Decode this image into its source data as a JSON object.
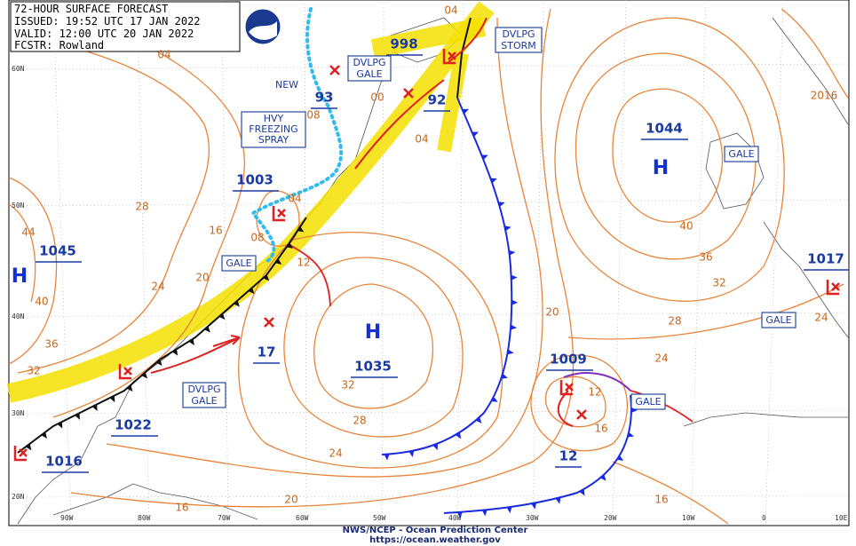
{
  "header": {
    "lines": [
      "72-HOUR SURFACE FORECAST",
      "ISSUED: 19:52 UTC 17 JAN 2022",
      "VALID: 12:00 UTC 20 JAN 2022",
      "FCSTR: Rowland"
    ]
  },
  "grid_labels": {
    "latitudes": [
      "60N",
      "50N",
      "40N",
      "30N",
      "20N"
    ],
    "longitudes": [
      "90W",
      "80W",
      "70W",
      "60W",
      "50W",
      "40W",
      "30W",
      "20W",
      "10W",
      "0",
      "10E"
    ]
  },
  "highs": [
    "H",
    "H",
    "H"
  ],
  "pressure_labels": [
    "1045",
    "1003",
    "1022",
    "1016",
    "1035",
    "1009",
    "1044",
    "1017",
    "998",
    "93",
    "92",
    "17",
    "12"
  ],
  "isobar_labels": [
    "04",
    "04",
    "04",
    "04",
    "00",
    "08",
    "08",
    "12",
    "28",
    "44",
    "40",
    "36",
    "32",
    "24",
    "20",
    "16",
    "32",
    "28",
    "24",
    "20",
    "16",
    "20",
    "24",
    "28",
    "32",
    "36",
    "40",
    "16",
    "12",
    "16",
    "24",
    "2016"
  ],
  "warnings": [
    {
      "lines": [
        "DVLPG",
        "GALE"
      ]
    },
    {
      "lines": [
        "DVLPG",
        "STORM"
      ]
    },
    {
      "lines": [
        "HVY",
        "FREEZING",
        "SPRAY"
      ]
    },
    {
      "lines": [
        "GALE"
      ]
    },
    {
      "lines": [
        "DVLPG",
        "GALE"
      ]
    },
    {
      "lines": [
        "GALE"
      ]
    },
    {
      "lines": [
        "GALE"
      ]
    },
    {
      "lines": [
        "GALE"
      ]
    }
  ],
  "new_label": "NEW",
  "footer": {
    "lines": [
      "NWS/NCEP - Ocean Prediction Center",
      "https://ocean.weather.gov"
    ]
  }
}
